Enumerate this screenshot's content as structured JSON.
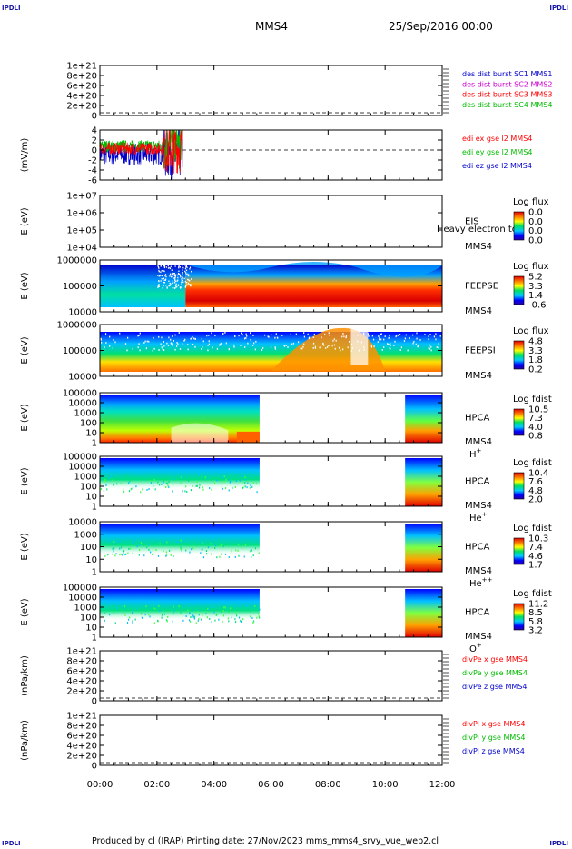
{
  "corners": {
    "tl": "IPDLI",
    "tr": "IPDLI",
    "bl": "IPDLI",
    "br": "IPDLI"
  },
  "header": {
    "spacecraft": "MMS4",
    "date": "25/Sep/2016 00:00"
  },
  "footer": {
    "text": "Produced by cl (IRAP)   Printing date: 27/Nov/2023   mms_mms4_srvy_vue_web2.cl"
  },
  "chart_data": [
    {
      "id": "p1",
      "type": "line",
      "ylabel": "",
      "yticks": [
        "1e+21",
        "8e+20",
        "6e+20",
        "4e+20",
        "2e+20",
        "0"
      ],
      "legend": [
        {
          "text": "des dist burst SC1 MMS1",
          "color": "#0000cc"
        },
        {
          "text": "des dist burst SC2 MMS2",
          "color": "#cc00cc"
        },
        {
          "text": "des dist burst SC3 MMS3",
          "color": "#ff0000"
        },
        {
          "text": "des dist burst SC4 MMS4",
          "color": "#00bb00"
        }
      ]
    },
    {
      "id": "p2",
      "type": "line",
      "ylabel": "(mV/m)",
      "yticks": [
        "4",
        "2",
        "0",
        "-2",
        "-4",
        "-6"
      ],
      "legend": [
        {
          "text": "edi ex gse l2 MMS4",
          "color": "#ff0000"
        },
        {
          "text": "edi ey gse l2 MMS4",
          "color": "#00bb00"
        },
        {
          "text": "edi ez gse l2 MMS4",
          "color": "#0000cc"
        }
      ]
    },
    {
      "id": "p3",
      "type": "heatmap",
      "ylabel": "E (eV)",
      "yticks": [
        "1e+07",
        "1e+06",
        "1e+05",
        "1e+04"
      ],
      "instrument": [
        "EIS",
        "MMS4"
      ],
      "overlay": "Heavy electron to",
      "colorbar": {
        "title": "Log flux",
        "labels": [
          "0.0",
          "0.0",
          "0.0",
          "0.0"
        ]
      }
    },
    {
      "id": "p4",
      "type": "heatmap",
      "ylabel": "E (eV)",
      "yticks": [
        "1000000",
        "100000",
        "10000"
      ],
      "instrument": [
        "FEEPSE",
        "MMS4"
      ],
      "colorbar": {
        "title": "Log flux",
        "labels": [
          "5.2",
          "3.3",
          "1.4",
          "-0.6"
        ]
      }
    },
    {
      "id": "p5",
      "type": "heatmap",
      "ylabel": "E (eV)",
      "yticks": [
        "1000000",
        "100000",
        "10000"
      ],
      "instrument": [
        "FEEPSI",
        "MMS4"
      ],
      "colorbar": {
        "title": "Log flux",
        "labels": [
          "4.8",
          "3.3",
          "1.8",
          "0.2"
        ]
      }
    },
    {
      "id": "p6",
      "type": "heatmap",
      "ylabel": "E (eV)",
      "yticks": [
        "100000",
        "10000",
        "1000",
        "100",
        "10",
        "1"
      ],
      "instrument": [
        "HPCA",
        "MMS4"
      ],
      "species": "H",
      "species_sup": "+",
      "colorbar": {
        "title": "Log fdist",
        "labels": [
          "10.5",
          "7.3",
          "4.0",
          "0.8"
        ]
      }
    },
    {
      "id": "p7",
      "type": "heatmap",
      "ylabel": "E (eV)",
      "yticks": [
        "100000",
        "10000",
        "1000",
        "100",
        "10",
        "1"
      ],
      "instrument": [
        "HPCA",
        "MMS4"
      ],
      "species": "He",
      "species_sup": "+",
      "colorbar": {
        "title": "Log fdist",
        "labels": [
          "10.4",
          "7.6",
          "4.8",
          "2.0"
        ]
      }
    },
    {
      "id": "p8",
      "type": "heatmap",
      "ylabel": "E (eV)",
      "yticks": [
        "10000",
        "1000",
        "100",
        "10",
        "1"
      ],
      "instrument": [
        "HPCA",
        "MMS4"
      ],
      "species": "He",
      "species_sup": "++",
      "colorbar": {
        "title": "Log fdist",
        "labels": [
          "10.3",
          "7.4",
          "4.6",
          "1.7"
        ]
      }
    },
    {
      "id": "p9",
      "type": "heatmap",
      "ylabel": "E (eV)",
      "yticks": [
        "100000",
        "10000",
        "1000",
        "100",
        "10",
        "1"
      ],
      "instrument": [
        "HPCA",
        "MMS4"
      ],
      "species": "O",
      "species_sup": "+",
      "colorbar": {
        "title": "Log fdist",
        "labels": [
          "11.2",
          "8.5",
          "5.8",
          "3.2"
        ]
      }
    },
    {
      "id": "p10",
      "type": "line",
      "ylabel": "(nPa/km)",
      "yticks": [
        "1e+21",
        "8e+20",
        "6e+20",
        "4e+20",
        "2e+20",
        "0"
      ],
      "legend": [
        {
          "text": "divPe x gse MMS4",
          "color": "#ff0000"
        },
        {
          "text": "divPe y gse MMS4",
          "color": "#00bb00"
        },
        {
          "text": "divPe z gse MMS4",
          "color": "#0000cc"
        }
      ]
    },
    {
      "id": "p11",
      "type": "line",
      "ylabel": "(nPa/km)",
      "yticks": [
        "1e+21",
        "8e+20",
        "6e+20",
        "4e+20",
        "2e+20",
        "0"
      ],
      "legend": [
        {
          "text": "divPi x gse MMS4",
          "color": "#ff0000"
        },
        {
          "text": "divPi y gse MMS4",
          "color": "#00bb00"
        },
        {
          "text": "divPi z gse MMS4",
          "color": "#0000cc"
        }
      ]
    }
  ],
  "time_axis": {
    "ticks": [
      "00:00",
      "02:00",
      "04:00",
      "06:00",
      "08:00",
      "10:00",
      "12:00"
    ],
    "range_hours": [
      0,
      12
    ]
  },
  "hpca_data_intervals_hours": [
    [
      0,
      5.6
    ],
    [
      10.7,
      12
    ]
  ]
}
